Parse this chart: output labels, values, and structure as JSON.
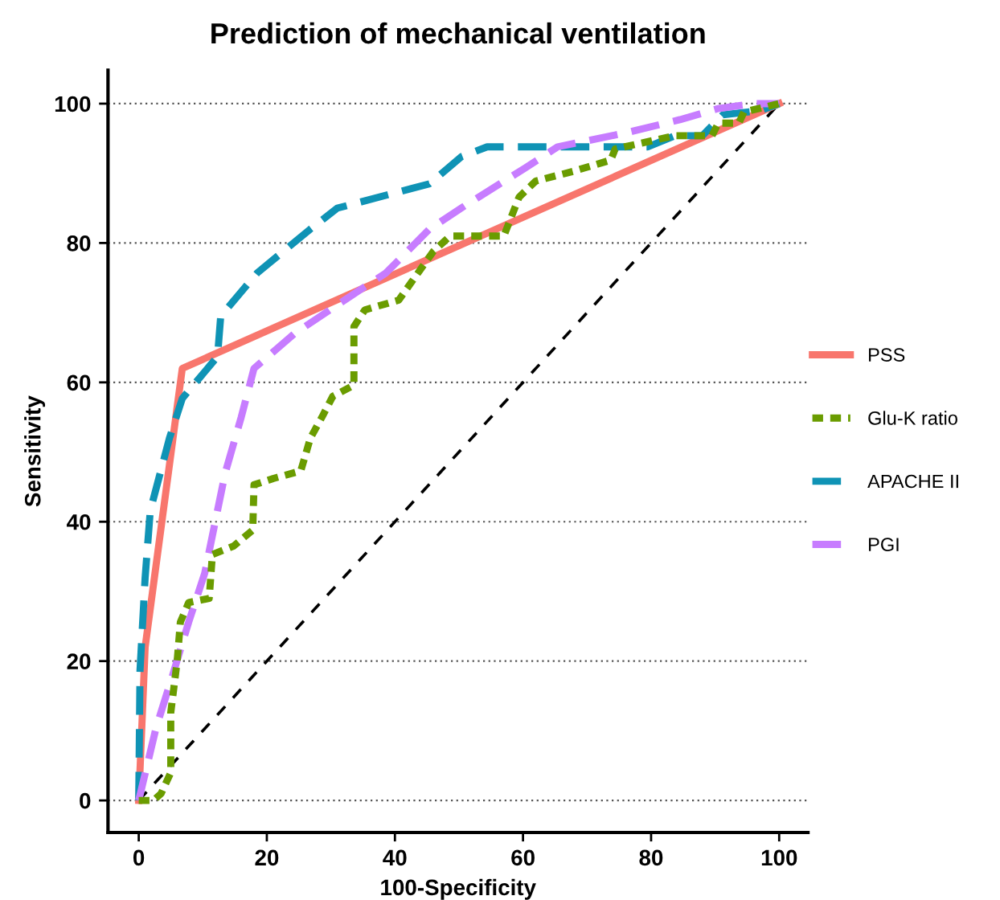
{
  "chart_data": {
    "type": "line",
    "title": "Prediction of mechanical ventilation",
    "xlabel": "100-Specificity",
    "ylabel": "Sensitivity",
    "xlim": [
      -4.8,
      104.5
    ],
    "ylim": [
      -4.6,
      104.8
    ],
    "xticks": [
      0,
      20,
      40,
      60,
      80,
      100
    ],
    "yticks": [
      0,
      20,
      40,
      60,
      80,
      100
    ],
    "grid": "y",
    "legend": "right",
    "series": [
      {
        "name": "PSS",
        "color": "#f8766d",
        "line_style": "solid",
        "x": [
          0,
          1,
          6.8,
          100
        ],
        "values": [
          0,
          22,
          62,
          100
        ]
      },
      {
        "name": "Glu-K ratio",
        "color": "#6a9c00",
        "line_style": "dotted",
        "x": [
          0,
          2.3,
          3.5,
          5,
          5,
          6,
          6.5,
          7.8,
          11,
          11.5,
          14.8,
          17.8,
          18,
          21,
          25.3,
          26.8,
          28.6,
          30.3,
          33.6,
          33.6,
          35.3,
          40.6,
          43.6,
          46,
          48.6,
          57,
          59.4,
          62,
          67.9,
          73.7,
          74.4,
          83.7,
          89.5,
          90.5,
          93.7,
          94.5,
          100
        ],
        "values": [
          0,
          0,
          1,
          4,
          12.6,
          20,
          25.6,
          28.4,
          29,
          35.3,
          36.5,
          38.8,
          45.3,
          46.2,
          47.3,
          52,
          55,
          58,
          59.6,
          68,
          70.4,
          71.8,
          75.7,
          78.8,
          81,
          81,
          86.6,
          88.9,
          90.3,
          91.9,
          93.5,
          95.4,
          95.4,
          97.2,
          97.2,
          98.8,
          100
        ]
      },
      {
        "name": "APACHE II",
        "color": "#0f93b5",
        "line_style": "dashed",
        "x": [
          0,
          0.2,
          1,
          1.8,
          4.8,
          6.8,
          12.3,
          12.8,
          18.5,
          26.8,
          31,
          45.4,
          50.4,
          54.4,
          79.5,
          83.7,
          88,
          91.2,
          97,
          100
        ],
        "values": [
          0,
          18.7,
          32,
          41.6,
          52,
          57.7,
          63.7,
          69.5,
          75.7,
          82,
          85,
          88.5,
          92.4,
          93.8,
          93.8,
          95.4,
          95.4,
          98.4,
          99,
          100
        ]
      },
      {
        "name": "PGI",
        "color": "#c77cff",
        "line_style": "dashed",
        "x": [
          0,
          2.7,
          5.3,
          7.8,
          10.3,
          13.5,
          16,
          18,
          24.3,
          33.6,
          38.6,
          45.4,
          51,
          60.4,
          65.4,
          76,
          84.5,
          90.5,
          96,
          100
        ],
        "values": [
          0,
          10.4,
          18,
          25.6,
          32.6,
          47,
          55,
          62,
          67,
          72.7,
          75.7,
          82,
          85.4,
          90.8,
          93.8,
          95.8,
          97.7,
          99.3,
          100,
          100
        ]
      },
      {
        "color": "#000000",
        "line_style": "dashed",
        "x": [
          0,
          100
        ],
        "values": [
          0,
          100
        ]
      }
    ]
  }
}
